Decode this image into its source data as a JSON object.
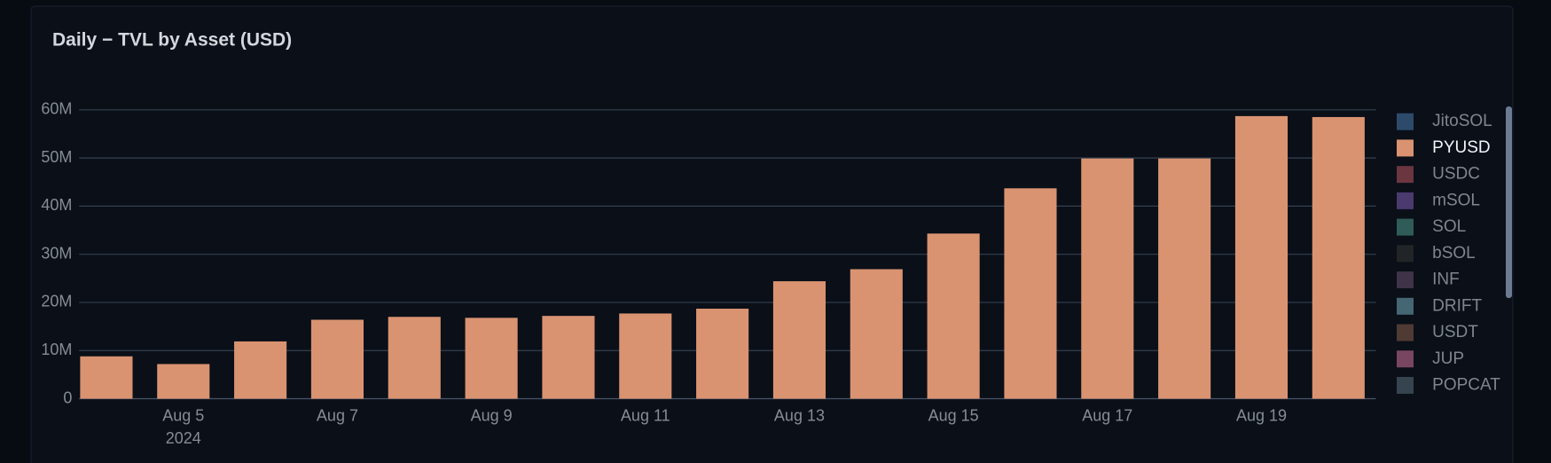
{
  "chart_data": {
    "type": "bar",
    "title": "Daily − TVL by Asset (USD)",
    "categories": [
      null,
      "Aug 5",
      null,
      "Aug 7",
      null,
      "Aug 9",
      null,
      "Aug 11",
      null,
      "Aug 13",
      null,
      "Aug 15",
      null,
      "Aug 17",
      null,
      "Aug 19",
      null
    ],
    "year_label": "2024",
    "series": [
      {
        "name": "JitoSOL",
        "color": "#2d4a6b",
        "visible": false
      },
      {
        "name": "PYUSD",
        "color": "#d99371",
        "visible": true,
        "values": [
          8800000,
          7200000,
          11900000,
          16400000,
          17000000,
          16800000,
          17200000,
          17700000,
          18700000,
          24400000,
          26900000,
          34300000,
          43700000,
          49900000,
          49900000,
          58700000,
          58500000
        ]
      },
      {
        "name": "USDC",
        "color": "#6b3640",
        "visible": false
      },
      {
        "name": "mSOL",
        "color": "#4a3a6e",
        "visible": false
      },
      {
        "name": "SOL",
        "color": "#2f5c58",
        "visible": false
      },
      {
        "name": "bSOL",
        "color": "#222527",
        "visible": false
      },
      {
        "name": "INF",
        "color": "#3e3347",
        "visible": false
      },
      {
        "name": "DRIFT",
        "color": "#456673",
        "visible": false
      },
      {
        "name": "USDT",
        "color": "#503a34",
        "visible": false
      },
      {
        "name": "JUP",
        "color": "#784660",
        "visible": false
      },
      {
        "name": "POPCAT",
        "color": "#36444f",
        "visible": false
      }
    ],
    "ylim": [
      0,
      60000000
    ],
    "yticks": [
      {
        "value": 0,
        "label": "0"
      },
      {
        "value": 10000000,
        "label": "10M"
      },
      {
        "value": 20000000,
        "label": "20M"
      },
      {
        "value": 30000000,
        "label": "30M"
      },
      {
        "value": 40000000,
        "label": "40M"
      },
      {
        "value": 50000000,
        "label": "50M"
      },
      {
        "value": 60000000,
        "label": "60M"
      }
    ],
    "grid": true
  }
}
